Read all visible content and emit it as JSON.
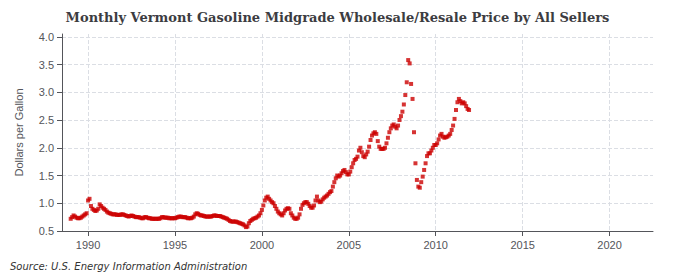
{
  "chart_data": {
    "type": "scatter",
    "title": "Monthly Vermont Gasoline Midgrade Wholesale/Resale Price by All Sellers",
    "ylabel": "Dollars per Gallon",
    "source": "Source: U.S. Energy Information Administration",
    "color": "#cc0000",
    "marker": "square",
    "grid": true,
    "xlim": [
      1988.5,
      2022.5
    ],
    "ylim": [
      0.5,
      4.05
    ],
    "xticks": [
      1990,
      1995,
      2000,
      2005,
      2010,
      2015,
      2020
    ],
    "yticks": [
      0.5,
      {
        "value": 1.0,
        "label": "1.0"
      },
      1.5,
      {
        "value": 2.0,
        "label": "2.0"
      },
      2.5,
      {
        "value": 3.0,
        "label": "3.0"
      },
      3.5,
      {
        "value": 4.0,
        "label": "4.0"
      }
    ],
    "x": [
      1989,
      1989.0833333333,
      1989.1666666667,
      1989.25,
      1989.3333333333,
      1989.4166666667,
      1989.5,
      1989.5833333333,
      1989.6666666667,
      1989.75,
      1989.8333333333,
      1989.9166666667,
      1990,
      1990.0833333333,
      1990.1666666667,
      1990.25,
      1990.3333333333,
      1990.4166666667,
      1990.5,
      1990.5833333333,
      1990.6666666667,
      1990.75,
      1990.8333333333,
      1990.9166666667,
      1991,
      1991.0833333333,
      1991.1666666667,
      1991.25,
      1991.3333333333,
      1991.4166666667,
      1991.5,
      1991.5833333333,
      1991.6666666667,
      1991.75,
      1991.8333333333,
      1991.9166666667,
      1992,
      1992.0833333333,
      1992.1666666667,
      1992.25,
      1992.3333333333,
      1992.4166666667,
      1992.5,
      1992.5833333333,
      1992.6666666667,
      1992.75,
      1992.8333333333,
      1992.9166666667,
      1993,
      1993.0833333333,
      1993.1666666667,
      1993.25,
      1993.3333333333,
      1993.4166666667,
      1993.5,
      1993.5833333333,
      1993.6666666667,
      1993.75,
      1993.8333333333,
      1993.9166666667,
      1994,
      1994.0833333333,
      1994.1666666667,
      1994.25,
      1994.3333333333,
      1994.4166666667,
      1994.5,
      1994.5833333333,
      1994.6666666667,
      1994.75,
      1994.8333333333,
      1994.9166666667,
      1995,
      1995.0833333333,
      1995.1666666667,
      1995.25,
      1995.3333333333,
      1995.4166666667,
      1995.5,
      1995.5833333333,
      1995.6666666667,
      1995.75,
      1995.8333333333,
      1995.9166666667,
      1996,
      1996.0833333333,
      1996.1666666667,
      1996.25,
      1996.3333333333,
      1996.4166666667,
      1996.5,
      1996.5833333333,
      1996.6666666667,
      1996.75,
      1996.8333333333,
      1996.9166666667,
      1997,
      1997.0833333333,
      1997.1666666667,
      1997.25,
      1997.3333333333,
      1997.4166666667,
      1997.5,
      1997.5833333333,
      1997.6666666667,
      1997.75,
      1997.8333333333,
      1997.9166666667,
      1998,
      1998.0833333333,
      1998.1666666667,
      1998.25,
      1998.3333333333,
      1998.4166666667,
      1998.5,
      1998.5833333333,
      1998.6666666667,
      1998.75,
      1998.8333333333,
      1998.9166666667,
      1999,
      1999.0833333333,
      1999.1666666667,
      1999.25,
      1999.3333333333,
      1999.4166666667,
      1999.5,
      1999.5833333333,
      1999.6666666667,
      1999.75,
      1999.8333333333,
      1999.9166666667,
      2000,
      2000.0833333333,
      2000.1666666667,
      2000.25,
      2000.3333333333,
      2000.4166666667,
      2000.5,
      2000.5833333333,
      2000.6666666667,
      2000.75,
      2000.8333333333,
      2000.9166666667,
      2001,
      2001.0833333333,
      2001.1666666667,
      2001.25,
      2001.3333333333,
      2001.4166666667,
      2001.5,
      2001.5833333333,
      2001.6666666667,
      2001.75,
      2001.8333333333,
      2001.9166666667,
      2002,
      2002.0833333333,
      2002.1666666667,
      2002.25,
      2002.3333333333,
      2002.4166666667,
      2002.5,
      2002.5833333333,
      2002.6666666667,
      2002.75,
      2002.8333333333,
      2002.9166666667,
      2003,
      2003.0833333333,
      2003.1666666667,
      2003.25,
      2003.3333333333,
      2003.4166666667,
      2003.5,
      2003.5833333333,
      2003.6666666667,
      2003.75,
      2003.8333333333,
      2003.9166666667,
      2004,
      2004.0833333333,
      2004.1666666667,
      2004.25,
      2004.3333333333,
      2004.4166666667,
      2004.5,
      2004.5833333333,
      2004.6666666667,
      2004.75,
      2004.8333333333,
      2004.9166666667,
      2005,
      2005.0833333333,
      2005.1666666667,
      2005.25,
      2005.3333333333,
      2005.4166666667,
      2005.5,
      2005.5833333333,
      2005.6666666667,
      2005.75,
      2005.8333333333,
      2005.9166666667,
      2006,
      2006.0833333333,
      2006.1666666667,
      2006.25,
      2006.3333333333,
      2006.4166666667,
      2006.5,
      2006.5833333333,
      2006.6666666667,
      2006.75,
      2006.8333333333,
      2006.9166666667,
      2007,
      2007.0833333333,
      2007.1666666667,
      2007.25,
      2007.3333333333,
      2007.4166666667,
      2007.5,
      2007.5833333333,
      2007.6666666667,
      2007.75,
      2007.8333333333,
      2007.9166666667,
      2008,
      2008.0833333333,
      2008.1666666667,
      2008.25,
      2008.3333333333,
      2008.4166666667,
      2008.5,
      2008.5833333333,
      2008.6666666667,
      2008.75,
      2008.8333333333,
      2008.9166666667,
      2009,
      2009.0833333333,
      2009.1666666667,
      2009.25,
      2009.3333333333,
      2009.4166666667,
      2009.5,
      2009.5833333333,
      2009.6666666667,
      2009.75,
      2009.8333333333,
      2009.9166666667,
      2010,
      2010.0833333333,
      2010.1666666667,
      2010.25,
      2010.3333333333,
      2010.4166666667,
      2010.5,
      2010.5833333333,
      2010.6666666667,
      2010.75,
      2010.8333333333,
      2010.9166666667,
      2011,
      2011.0833333333,
      2011.1666666667,
      2011.25,
      2011.3333333333,
      2011.4166666667,
      2011.5,
      2011.5833333333,
      2011.6666666667,
      2011.75,
      2011.8333333333,
      2011.9166666667
    ],
    "values": [
      0.72,
      0.75,
      0.78,
      0.76,
      0.74,
      0.73,
      0.73,
      0.74,
      0.76,
      0.78,
      0.8,
      0.82,
      1.05,
      1.08,
      0.95,
      0.9,
      0.88,
      0.86,
      0.87,
      0.9,
      0.98,
      0.95,
      0.92,
      0.9,
      0.88,
      0.85,
      0.83,
      0.82,
      0.81,
      0.8,
      0.8,
      0.8,
      0.79,
      0.79,
      0.79,
      0.8,
      0.8,
      0.79,
      0.78,
      0.77,
      0.76,
      0.77,
      0.78,
      0.77,
      0.76,
      0.75,
      0.75,
      0.75,
      0.74,
      0.73,
      0.73,
      0.75,
      0.75,
      0.74,
      0.73,
      0.73,
      0.72,
      0.72,
      0.72,
      0.72,
      0.72,
      0.72,
      0.73,
      0.75,
      0.75,
      0.74,
      0.74,
      0.74,
      0.73,
      0.73,
      0.73,
      0.73,
      0.73,
      0.74,
      0.75,
      0.76,
      0.76,
      0.75,
      0.75,
      0.75,
      0.74,
      0.73,
      0.73,
      0.73,
      0.74,
      0.76,
      0.8,
      0.82,
      0.81,
      0.79,
      0.78,
      0.78,
      0.77,
      0.76,
      0.76,
      0.76,
      0.76,
      0.76,
      0.77,
      0.78,
      0.78,
      0.77,
      0.77,
      0.77,
      0.76,
      0.75,
      0.74,
      0.73,
      0.72,
      0.7,
      0.68,
      0.67,
      0.67,
      0.67,
      0.67,
      0.66,
      0.65,
      0.64,
      0.63,
      0.62,
      0.6,
      0.57,
      0.58,
      0.64,
      0.68,
      0.7,
      0.72,
      0.73,
      0.74,
      0.76,
      0.78,
      0.82,
      0.88,
      0.96,
      1.05,
      1.1,
      1.12,
      1.08,
      1.05,
      1.02,
      1.0,
      0.95,
      0.9,
      0.85,
      0.82,
      0.8,
      0.78,
      0.82,
      0.87,
      0.9,
      0.91,
      0.9,
      0.82,
      0.78,
      0.74,
      0.72,
      0.72,
      0.74,
      0.8,
      0.9,
      0.97,
      1.0,
      1.02,
      1.02,
      0.99,
      0.95,
      0.92,
      0.92,
      0.96,
      1.05,
      1.12,
      1.05,
      1.02,
      1.03,
      1.07,
      1.1,
      1.12,
      1.14,
      1.17,
      1.2,
      1.22,
      1.3,
      1.38,
      1.45,
      1.5,
      1.48,
      1.5,
      1.54,
      1.58,
      1.6,
      1.56,
      1.52,
      1.52,
      1.57,
      1.65,
      1.72,
      1.78,
      1.8,
      1.84,
      1.95,
      2.0,
      1.92,
      1.85,
      1.83,
      1.88,
      1.93,
      2.02,
      2.14,
      2.22,
      2.26,
      2.28,
      2.25,
      2.12,
      2.02,
      1.98,
      1.98,
      1.98,
      2.0,
      2.08,
      2.18,
      2.28,
      2.35,
      2.4,
      2.42,
      2.38,
      2.35,
      2.4,
      2.5,
      2.57,
      2.65,
      2.78,
      2.95,
      3.18,
      3.58,
      3.52,
      3.15,
      2.88,
      2.28,
      1.72,
      1.42,
      1.3,
      1.28,
      1.38,
      1.48,
      1.6,
      1.72,
      1.85,
      1.9,
      1.9,
      1.95,
      2.0,
      2.05,
      2.05,
      2.08,
      2.15,
      2.22,
      2.25,
      2.2,
      2.18,
      2.19,
      2.2,
      2.22,
      2.25,
      2.32,
      2.4,
      2.52,
      2.68,
      2.82,
      2.88,
      2.84,
      2.8,
      2.82,
      2.8,
      2.75,
      2.7,
      2.68
    ]
  }
}
